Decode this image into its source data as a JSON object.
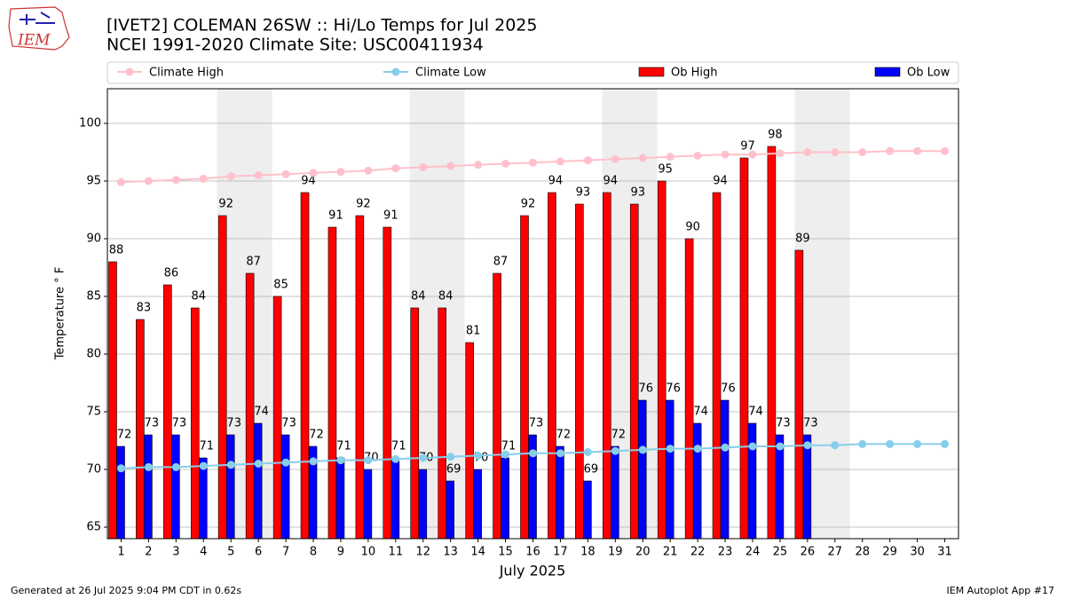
{
  "chart_data": {
    "type": "bar_line",
    "logo_text": "IEM",
    "title": "[IVET2] COLEMAN 26SW :: Hi/Lo Temps for Jul 2025",
    "subtitle": "NCEI 1991-2020 Climate Site: USC00411934",
    "xlabel": "July 2025",
    "ylabel": "Temperature ° F",
    "footer_left": "Generated at 26 Jul 2025 9:04 PM CDT in 0.62s",
    "footer_right": "IEM Autoplot App #17",
    "x": [
      1,
      2,
      3,
      4,
      5,
      6,
      7,
      8,
      9,
      10,
      11,
      12,
      13,
      14,
      15,
      16,
      17,
      18,
      19,
      20,
      21,
      22,
      23,
      24,
      25,
      26,
      27,
      28,
      29,
      30,
      31
    ],
    "xlim": [
      0.5,
      31.5
    ],
    "xticks": [
      1,
      2,
      3,
      4,
      5,
      6,
      7,
      8,
      9,
      10,
      11,
      12,
      13,
      14,
      15,
      16,
      17,
      18,
      19,
      20,
      21,
      22,
      23,
      24,
      25,
      26,
      27,
      28,
      29,
      30,
      31
    ],
    "ylim": [
      64,
      103
    ],
    "yticks": [
      65,
      70,
      75,
      80,
      85,
      90,
      95,
      100
    ],
    "grid": true,
    "series": [
      {
        "name": "Climate High",
        "kind": "line",
        "color": "#ffc0cb",
        "values": [
          94.9,
          95.0,
          95.1,
          95.2,
          95.4,
          95.5,
          95.6,
          95.7,
          95.8,
          95.9,
          96.1,
          96.2,
          96.3,
          96.4,
          96.5,
          96.6,
          96.7,
          96.8,
          96.9,
          97.0,
          97.1,
          97.2,
          97.3,
          97.3,
          97.4,
          97.5,
          97.5,
          97.5,
          97.6,
          97.6,
          97.6
        ]
      },
      {
        "name": "Climate Low",
        "kind": "line",
        "color": "#87ceeb",
        "values": [
          70.1,
          70.2,
          70.2,
          70.3,
          70.4,
          70.5,
          70.6,
          70.7,
          70.8,
          70.8,
          70.9,
          71.0,
          71.1,
          71.2,
          71.3,
          71.4,
          71.4,
          71.5,
          71.6,
          71.7,
          71.8,
          71.8,
          71.9,
          72.0,
          72.0,
          72.1,
          72.1,
          72.2,
          72.2,
          72.2,
          72.2
        ]
      },
      {
        "name": "Ob High",
        "kind": "bar",
        "color": "#ff0000",
        "values": [
          88,
          83,
          86,
          84,
          92,
          87,
          85,
          94,
          91,
          92,
          91,
          84,
          84,
          81,
          87,
          92,
          94,
          93,
          94,
          93,
          95,
          90,
          94,
          97,
          98,
          89,
          null,
          null,
          null,
          null,
          null
        ]
      },
      {
        "name": "Ob Low",
        "kind": "bar",
        "color": "#0000ff",
        "values": [
          72,
          73,
          73,
          71,
          73,
          74,
          73,
          72,
          71,
          70,
          71,
          70,
          69,
          70,
          71,
          73,
          72,
          69,
          72,
          76,
          76,
          74,
          76,
          74,
          73,
          73,
          null,
          null,
          null,
          null,
          null
        ]
      }
    ]
  }
}
